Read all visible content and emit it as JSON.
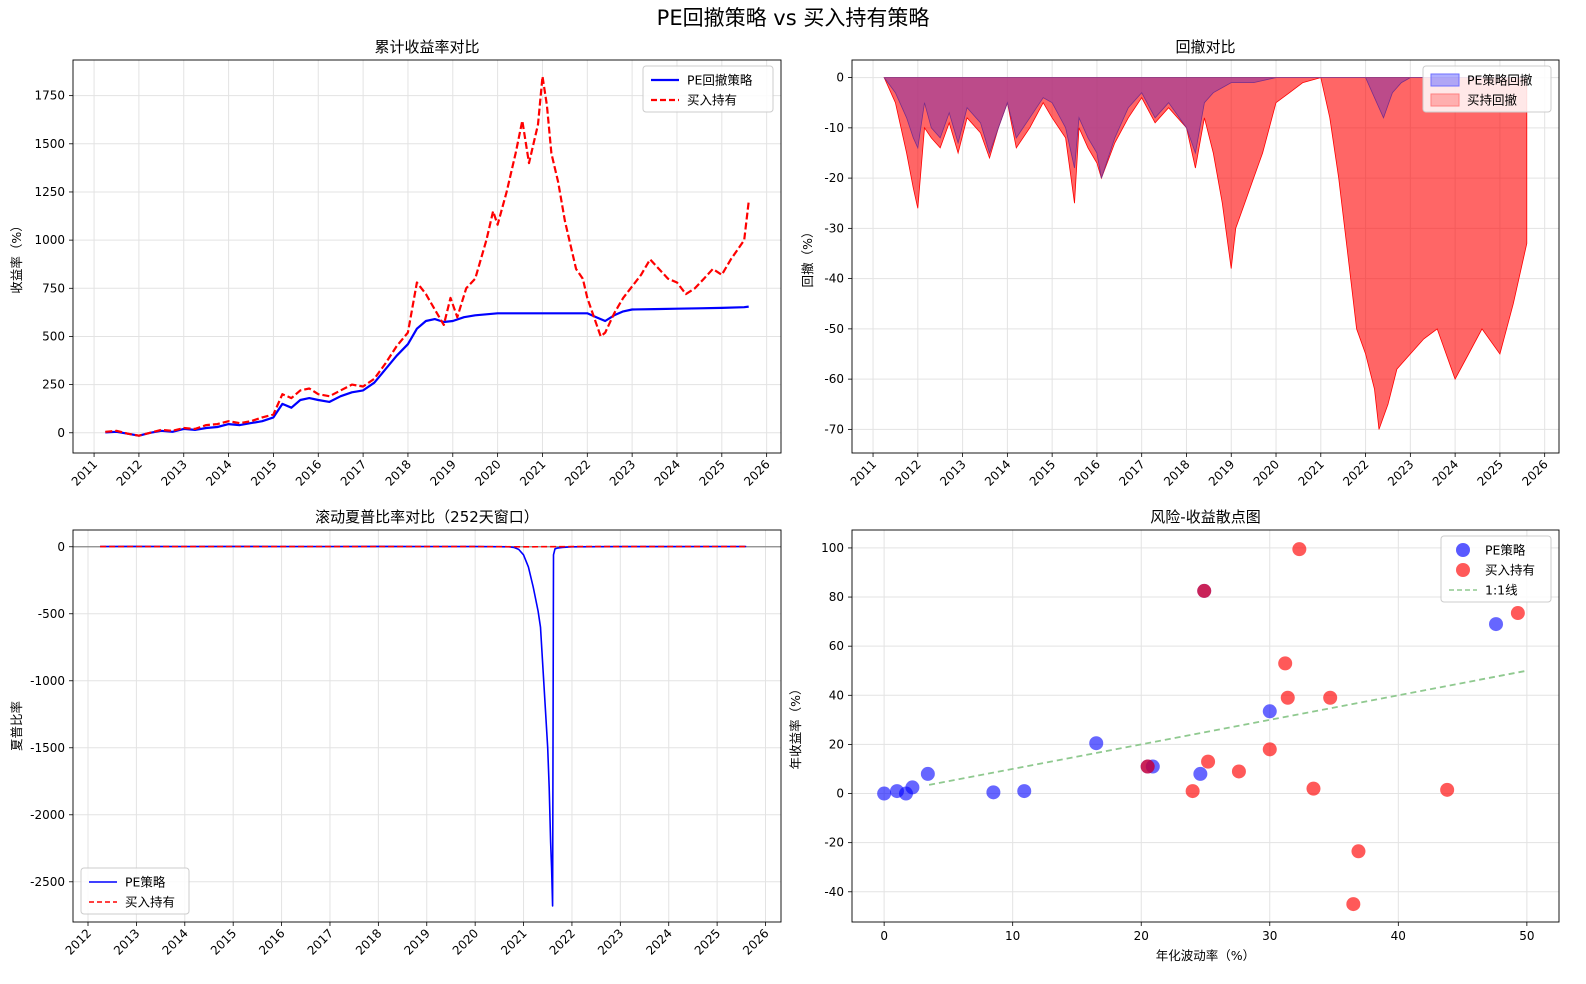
{
  "figure": {
    "suptitle": "PE回撤策略 vs 买入持有策略",
    "colors": {
      "pe": "#0000ff",
      "bh": "#ff0000",
      "pe_fill": "#6f6fff",
      "bh_fill": "#ff8080",
      "overlap_fill": "#a0409a",
      "line_1to1": "#8fc98f",
      "grid": "#e3e3e3",
      "zero_line": "#888888"
    }
  },
  "chart_data": [
    {
      "id": "cumulative",
      "type": "line",
      "title": "累计收益率对比",
      "xlabel": "",
      "ylabel": "收益率（%）",
      "xlim": [
        2010.53,
        2026.32
      ],
      "ylim": [
        -105,
        1935
      ],
      "xticks": [
        2011,
        2012,
        2013,
        2014,
        2015,
        2016,
        2017,
        2018,
        2019,
        2020,
        2021,
        2022,
        2023,
        2024,
        2025,
        2026
      ],
      "yticks": [
        0,
        250,
        500,
        750,
        1000,
        1250,
        1500,
        1750
      ],
      "grid": true,
      "legend": "top-right",
      "series": [
        {
          "name": "PE回撤策略",
          "style": "solid",
          "x": [
            2011.25,
            2011.5,
            2011.75,
            2012.0,
            2012.25,
            2012.5,
            2012.75,
            2013.0,
            2013.25,
            2013.5,
            2013.75,
            2014.0,
            2014.25,
            2014.5,
            2014.75,
            2015.0,
            2015.2,
            2015.4,
            2015.6,
            2015.8,
            2016.0,
            2016.25,
            2016.5,
            2016.75,
            2017.0,
            2017.25,
            2017.5,
            2017.75,
            2018.0,
            2018.2,
            2018.4,
            2018.6,
            2018.8,
            2019.0,
            2019.25,
            2019.5,
            2019.75,
            2020.0,
            2020.5,
            2021.0,
            2021.5,
            2022.0,
            2022.2,
            2022.4,
            2022.6,
            2022.8,
            2023.0,
            2023.5,
            2024.0,
            2024.5,
            2025.0,
            2025.5,
            2025.6
          ],
          "values": [
            2,
            5,
            -5,
            -15,
            0,
            10,
            5,
            20,
            15,
            25,
            30,
            45,
            40,
            50,
            60,
            80,
            150,
            130,
            170,
            180,
            170,
            160,
            190,
            210,
            220,
            260,
            330,
            400,
            460,
            540,
            580,
            590,
            575,
            580,
            600,
            610,
            615,
            620,
            620,
            620,
            620,
            620,
            600,
            580,
            610,
            630,
            640,
            642,
            644,
            646,
            648,
            652,
            655
          ]
        },
        {
          "name": "买入持有",
          "style": "dashed",
          "x": [
            2011.25,
            2011.5,
            2011.75,
            2012.0,
            2012.25,
            2012.5,
            2012.75,
            2013.0,
            2013.25,
            2013.5,
            2013.75,
            2014.0,
            2014.25,
            2014.5,
            2014.75,
            2015.0,
            2015.2,
            2015.4,
            2015.6,
            2015.8,
            2016.0,
            2016.25,
            2016.5,
            2016.75,
            2017.0,
            2017.25,
            2017.5,
            2017.75,
            2018.0,
            2018.2,
            2018.4,
            2018.6,
            2018.8,
            2018.95,
            2019.1,
            2019.3,
            2019.5,
            2019.75,
            2019.9,
            2020.0,
            2020.2,
            2020.4,
            2020.55,
            2020.7,
            2020.8,
            2020.9,
            2021.0,
            2021.1,
            2021.2,
            2021.35,
            2021.5,
            2021.65,
            2021.75,
            2021.9,
            2022.0,
            2022.15,
            2022.3,
            2022.4,
            2022.6,
            2022.8,
            2023.0,
            2023.2,
            2023.4,
            2023.6,
            2023.8,
            2024.0,
            2024.2,
            2024.4,
            2024.6,
            2024.8,
            2025.0,
            2025.2,
            2025.35,
            2025.5,
            2025.6
          ],
          "values": [
            5,
            10,
            -5,
            -15,
            0,
            15,
            10,
            25,
            20,
            40,
            45,
            60,
            50,
            60,
            80,
            95,
            200,
            180,
            220,
            230,
            200,
            190,
            220,
            250,
            240,
            280,
            360,
            450,
            520,
            780,
            720,
            640,
            560,
            700,
            600,
            750,
            800,
            1000,
            1150,
            1080,
            1250,
            1450,
            1620,
            1400,
            1500,
            1600,
            1850,
            1700,
            1450,
            1300,
            1100,
            950,
            850,
            800,
            700,
            600,
            500,
            520,
            620,
            700,
            760,
            820,
            900,
            850,
            800,
            780,
            720,
            750,
            800,
            850,
            820,
            900,
            950,
            1000,
            1200
          ]
        }
      ]
    },
    {
      "id": "drawdown",
      "type": "area",
      "title": "回撤对比",
      "xlabel": "",
      "ylabel": "回撤（%）",
      "xlim": [
        2010.53,
        2026.32
      ],
      "ylim": [
        -74.7,
        3.5
      ],
      "xticks": [
        2011,
        2012,
        2013,
        2014,
        2015,
        2016,
        2017,
        2018,
        2019,
        2020,
        2021,
        2022,
        2023,
        2024,
        2025,
        2026
      ],
      "yticks": [
        0,
        -10,
        -20,
        -30,
        -40,
        -50,
        -60,
        -70
      ],
      "grid": true,
      "legend": "top-right",
      "series": [
        {
          "name": "PE策略回撤",
          "x": [
            2011.25,
            2011.5,
            2011.75,
            2011.9,
            2012.0,
            2012.15,
            2012.3,
            2012.5,
            2012.7,
            2012.9,
            2013.1,
            2013.4,
            2013.6,
            2013.8,
            2014.0,
            2014.2,
            2014.5,
            2014.8,
            2015.0,
            2015.3,
            2015.5,
            2015.6,
            2015.8,
            2016.0,
            2016.1,
            2016.4,
            2016.7,
            2017.0,
            2017.3,
            2017.6,
            2018.0,
            2018.2,
            2018.4,
            2018.6,
            2018.8,
            2019.0,
            2019.5,
            2020.0,
            2020.5,
            2021.0,
            2021.5,
            2022.0,
            2022.2,
            2022.4,
            2022.6,
            2022.8,
            2023.0,
            2023.5,
            2024.0,
            2024.5,
            2025.0,
            2025.6
          ],
          "values": [
            0,
            -3,
            -8,
            -12,
            -14,
            -5,
            -10,
            -12,
            -7,
            -13,
            -6,
            -9,
            -15,
            -10,
            -5,
            -12,
            -8,
            -4,
            -5,
            -10,
            -18,
            -8,
            -12,
            -15,
            -20,
            -12,
            -6,
            -3,
            -8,
            -5,
            -10,
            -15,
            -5,
            -3,
            -2,
            -1,
            -1,
            0,
            0,
            0,
            0,
            0,
            -4,
            -8,
            -3,
            -1,
            0,
            0,
            0,
            0,
            0,
            0
          ]
        },
        {
          "name": "买持回撤",
          "x": [
            2011.25,
            2011.5,
            2011.75,
            2011.9,
            2012.0,
            2012.15,
            2012.3,
            2012.5,
            2012.7,
            2012.9,
            2013.1,
            2013.4,
            2013.6,
            2013.8,
            2014.0,
            2014.2,
            2014.5,
            2014.8,
            2015.0,
            2015.3,
            2015.5,
            2015.6,
            2015.8,
            2016.0,
            2016.1,
            2016.4,
            2016.7,
            2017.0,
            2017.3,
            2017.6,
            2018.0,
            2018.2,
            2018.4,
            2018.6,
            2018.8,
            2019.0,
            2019.1,
            2019.3,
            2019.5,
            2019.7,
            2020.0,
            2020.3,
            2020.6,
            2021.0,
            2021.2,
            2021.4,
            2021.6,
            2021.8,
            2022.0,
            2022.2,
            2022.3,
            2022.5,
            2022.7,
            2023.0,
            2023.3,
            2023.6,
            2024.0,
            2024.3,
            2024.6,
            2025.0,
            2025.3,
            2025.6
          ],
          "values": [
            0,
            -5,
            -15,
            -22,
            -26,
            -10,
            -12,
            -14,
            -9,
            -15,
            -8,
            -11,
            -16,
            -10,
            -5,
            -14,
            -10,
            -5,
            -8,
            -12,
            -25,
            -10,
            -14,
            -17,
            -20,
            -13,
            -8,
            -4,
            -9,
            -6,
            -10,
            -18,
            -8,
            -15,
            -25,
            -38,
            -30,
            -25,
            -20,
            -15,
            -5,
            -3,
            -1,
            0,
            -8,
            -20,
            -35,
            -50,
            -55,
            -62,
            -70,
            -65,
            -58,
            -55,
            -52,
            -50,
            -60,
            -55,
            -50,
            -55,
            -45,
            -33
          ]
        }
      ]
    },
    {
      "id": "rolling_sharpe",
      "type": "line",
      "title": "滚动夏普比率对比（252天窗口）",
      "xlabel": "",
      "ylabel": "夏普比率",
      "xlim": [
        2011.69,
        2026.32
      ],
      "ylim": [
        -2800,
        125
      ],
      "xticks": [
        2012,
        2013,
        2014,
        2015,
        2016,
        2017,
        2018,
        2019,
        2020,
        2021,
        2022,
        2023,
        2024,
        2025,
        2026
      ],
      "yticks": [
        0,
        -500,
        -1000,
        -1500,
        -2000,
        -2500
      ],
      "grid": true,
      "legend": "bottom-left",
      "series": [
        {
          "name": "PE策略",
          "style": "solid",
          "x": [
            2012.25,
            2013.0,
            2014.0,
            2015.0,
            2016.0,
            2017.0,
            2018.0,
            2019.0,
            2020.0,
            2020.7,
            2020.8,
            2020.9,
            2021.0,
            2021.1,
            2021.2,
            2021.3,
            2021.35,
            2021.4,
            2021.45,
            2021.5,
            2021.53,
            2021.56,
            2021.58,
            2021.6,
            2021.62,
            2021.65,
            2021.7,
            2021.8,
            2022.0,
            2023.0,
            2024.0,
            2025.0,
            2025.6
          ],
          "values": [
            2,
            3,
            2,
            3,
            2,
            2,
            3,
            2,
            2,
            0,
            -5,
            -20,
            -60,
            -150,
            -300,
            -480,
            -600,
            -900,
            -1200,
            -1500,
            -1800,
            -2200,
            -2400,
            -2680,
            -60,
            -15,
            -10,
            -5,
            0,
            1,
            1,
            2,
            2
          ]
        },
        {
          "name": "买入持有",
          "style": "dashed",
          "x": [
            2012.25,
            2013.0,
            2014.0,
            2015.0,
            2016.0,
            2017.0,
            2018.0,
            2019.0,
            2020.0,
            2021.0,
            2022.0,
            2023.0,
            2024.0,
            2025.0,
            2025.6
          ],
          "values": [
            1,
            2,
            1,
            2,
            1,
            1,
            2,
            1,
            1,
            0,
            1,
            1,
            1,
            2,
            1
          ]
        }
      ]
    },
    {
      "id": "risk_return",
      "type": "scatter",
      "title": "风险-收益散点图",
      "xlabel": "年化波动率（%）",
      "ylabel": "年收益率（%）",
      "xlim": [
        -2.5,
        52.5
      ],
      "ylim": [
        -52.3,
        107.3
      ],
      "xticks": [
        0,
        10,
        20,
        30,
        40,
        50
      ],
      "yticks": [
        -40,
        -20,
        0,
        20,
        40,
        60,
        80,
        100
      ],
      "grid": true,
      "legend": "top-right",
      "series": [
        {
          "name": "PE策略",
          "x": [
            0,
            1.0,
            1.7,
            2.2,
            3.4,
            8.5,
            10.9,
            16.5,
            20.5,
            20.9,
            24.6,
            24.9,
            30.0,
            47.6
          ],
          "values": [
            0,
            1,
            0,
            2.5,
            8,
            0.5,
            1,
            20.5,
            11,
            11,
            8,
            82.5,
            33.5,
            69
          ]
        },
        {
          "name": "买入持有",
          "x": [
            20.5,
            24.0,
            24.9,
            25.2,
            27.6,
            30.0,
            31.2,
            31.4,
            32.3,
            33.4,
            34.7,
            36.5,
            36.9,
            43.8,
            49.3
          ],
          "values": [
            11,
            1,
            82.5,
            13,
            9,
            18,
            53,
            39,
            99.5,
            2,
            39,
            -45,
            -23.5,
            1.5,
            73.5
          ]
        },
        {
          "name": "1:1线",
          "style": "dashed",
          "x": [
            3.5,
            50
          ],
          "values": [
            3.5,
            50
          ]
        }
      ]
    }
  ]
}
